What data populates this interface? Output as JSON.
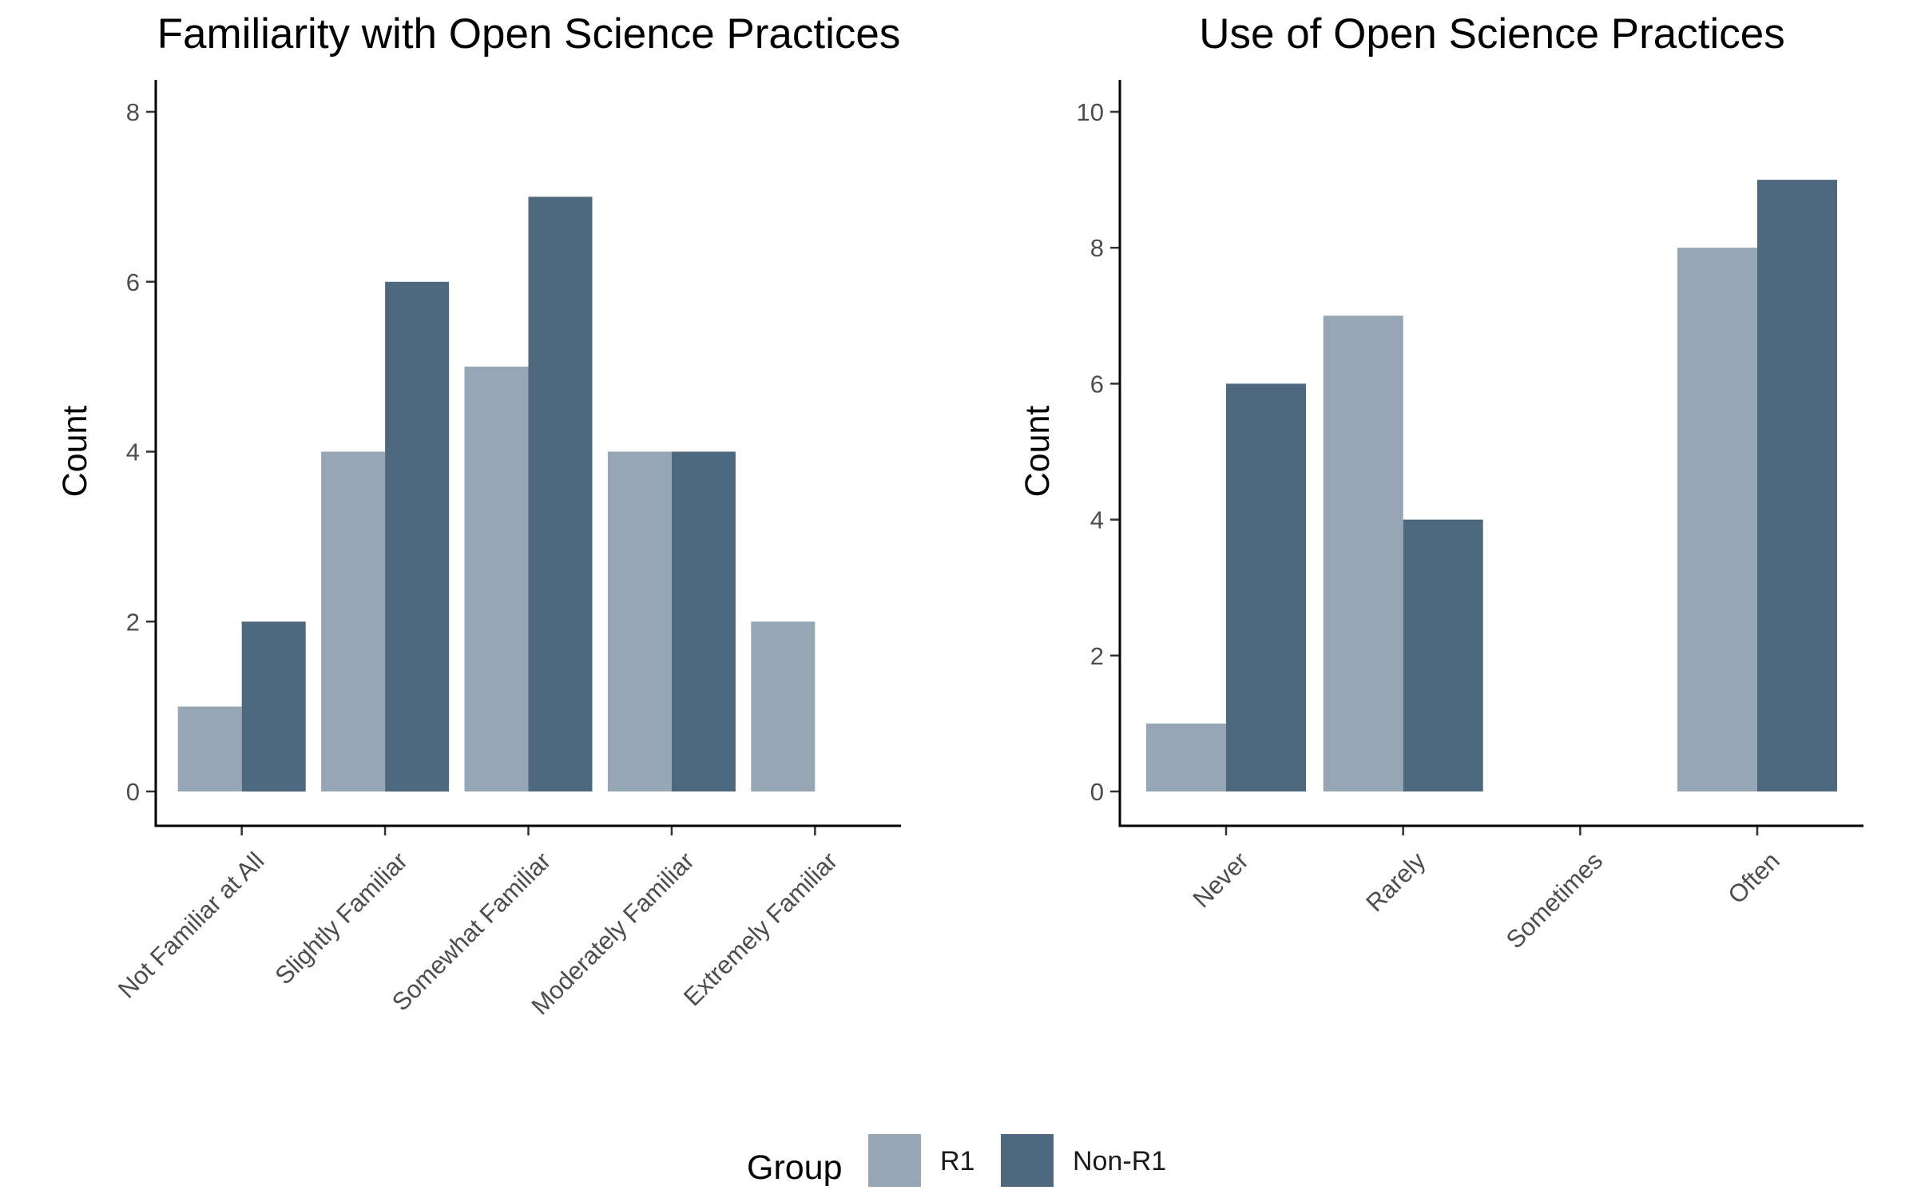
{
  "chart_data": [
    {
      "type": "bar",
      "title": "Familiarity with Open Science Practices",
      "xlabel": "",
      "ylabel": "Count",
      "categories": [
        "Not Familiar at All",
        "Slightly Familiar",
        "Somewhat Familiar",
        "Moderately Familiar",
        "Extremely Familiar"
      ],
      "series": [
        {
          "name": "R1",
          "values": [
            1,
            4,
            5,
            4,
            2
          ]
        },
        {
          "name": "Non-R1",
          "values": [
            2,
            6,
            7,
            4,
            0
          ]
        }
      ],
      "yticks": [
        0,
        2,
        4,
        6,
        8
      ],
      "ylim": [
        0,
        8.4
      ],
      "grid": false
    },
    {
      "type": "bar",
      "title": "Use of Open Science Practices",
      "xlabel": "",
      "ylabel": "Count",
      "categories": [
        "Never",
        "Rarely",
        "Sometimes",
        "Often"
      ],
      "series": [
        {
          "name": "R1",
          "values": [
            1,
            7,
            0,
            8
          ]
        },
        {
          "name": "Non-R1",
          "values": [
            6,
            4,
            0,
            9
          ]
        }
      ],
      "yticks": [
        0,
        2,
        4,
        6,
        8,
        10
      ],
      "ylim": [
        0,
        10.5
      ],
      "grid": false
    }
  ],
  "legend": {
    "title": "Group",
    "placement": "bottom",
    "items": [
      {
        "label": "R1",
        "color": "#97a6b4"
      },
      {
        "label": "Non-R1",
        "color": "#4e697f"
      }
    ]
  },
  "colors": {
    "R1": "#97a6b4",
    "Non-R1": "#4e697f"
  }
}
